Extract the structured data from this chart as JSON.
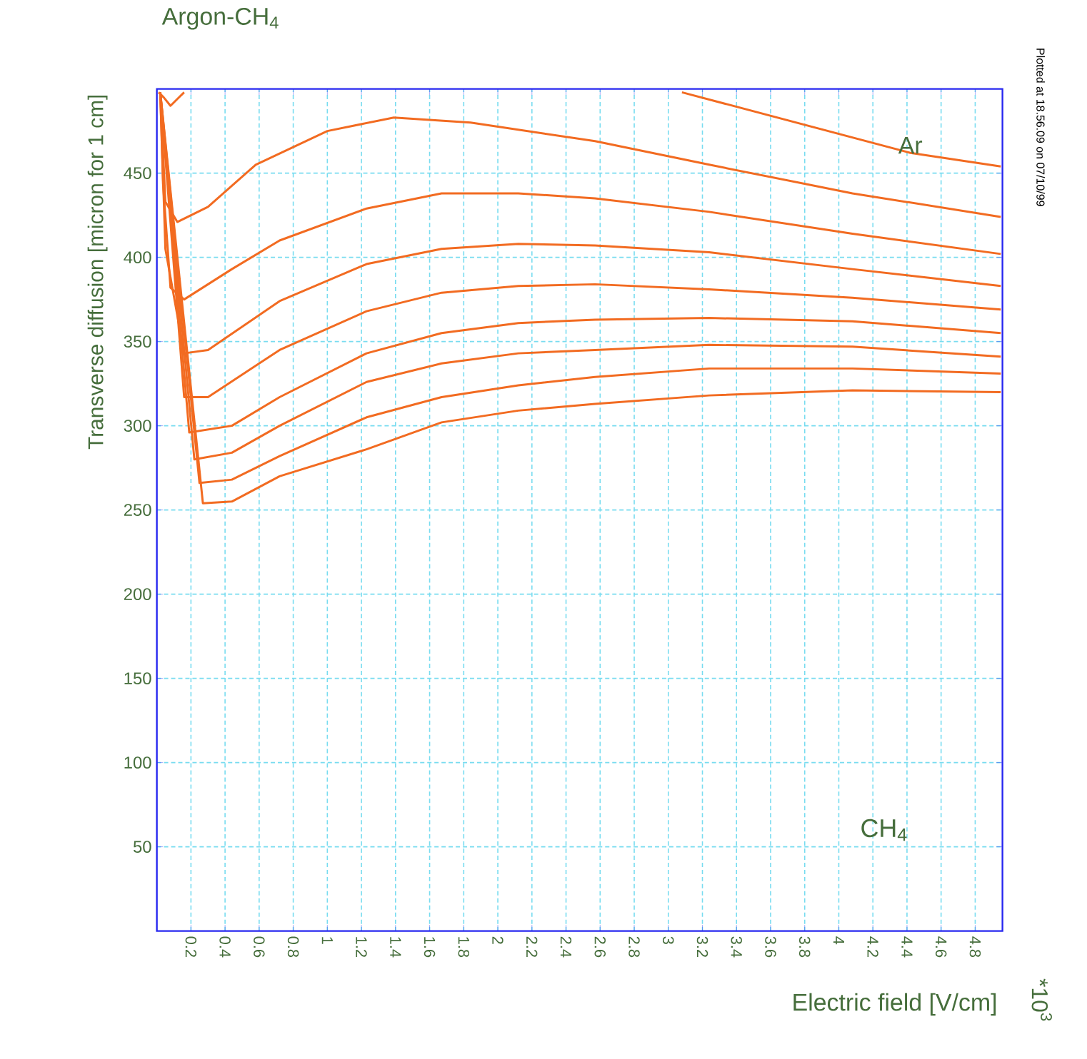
{
  "chart_data": {
    "type": "line",
    "title": "Argon-CH$_{4}$",
    "xlabel": "Electric field [V/cm]",
    "ylabel": "Transverse diffusion [micron for 1 cm]",
    "annotations": [
      {
        "text": "Ar",
        "x": 4.42,
        "y": 462
      },
      "CH$_{4}$",
      "Plotted at 18.56.09 on 07/10/99",
      "*10$^{3}$"
    ],
    "xlim": [
      0,
      4.96
    ],
    "ylim": [
      0,
      500
    ],
    "xticks": [
      0.2,
      0.4,
      0.6,
      0.8,
      1,
      1.2,
      1.4,
      1.6,
      1.8,
      2,
      2.2,
      2.4,
      2.6,
      2.8,
      3,
      3.2,
      3.4,
      3.6,
      3.8,
      4,
      4.2,
      4.4,
      4.6,
      4.8
    ],
    "yticks": [
      50,
      100,
      150,
      200,
      250,
      300,
      350,
      400,
      450
    ],
    "grid": true,
    "series": [
      {
        "color": "#f26b21",
        "x": [
          0.01,
          0.04,
          0.08,
          0.12,
          0.16,
          1.0,
          3.08,
          4.42,
          4.95
        ],
        "values": [
          498,
          495,
          490,
          494,
          498,
          null,
          498,
          462,
          454
        ]
      },
      {
        "color": "#f26b21",
        "x": [
          0.02,
          0.05,
          0.12,
          0.3,
          0.58,
          1.0,
          1.39,
          1.84,
          2.57,
          3.24,
          4.08,
          4.95
        ],
        "values": [
          498,
          433,
          421,
          430,
          455,
          475,
          483,
          480,
          469,
          455,
          438,
          424
        ]
      },
      {
        "color": "#f26b21",
        "x": [
          0.02,
          0.036,
          0.08,
          0.16,
          0.44,
          0.72,
          1.23,
          1.67,
          2.12,
          2.57,
          3.24,
          4.08,
          4.95
        ],
        "values": [
          498,
          444,
          382,
          375,
          393,
          410,
          429,
          438,
          438,
          435,
          427,
          414,
          402
        ]
      },
      {
        "color": "#f26b21",
        "x": [
          0.02,
          0.05,
          0.16,
          0.3,
          0.72,
          1.23,
          1.67,
          2.12,
          2.57,
          3.24,
          4.08,
          4.95
        ],
        "values": [
          498,
          405,
          343,
          345,
          374,
          396,
          405,
          408,
          407,
          403,
          393,
          383
        ]
      },
      {
        "color": "#f26b21",
        "x": [
          0.02,
          0.16,
          0.3,
          0.72,
          1.23,
          1.67,
          2.12,
          2.57,
          3.24,
          4.08,
          4.95
        ],
        "values": [
          498,
          317,
          317,
          345,
          368,
          379,
          383,
          384,
          381,
          376,
          369
        ]
      },
      {
        "color": "#f26b21",
        "x": [
          0.02,
          0.19,
          0.44,
          0.72,
          1.23,
          1.67,
          2.12,
          2.57,
          3.24,
          4.08,
          4.95
        ],
        "values": [
          498,
          296,
          300,
          317,
          343,
          355,
          361,
          363,
          364,
          362,
          355
        ]
      },
      {
        "color": "#f26b21",
        "x": [
          0.02,
          0.22,
          0.44,
          0.72,
          1.23,
          1.67,
          2.12,
          2.57,
          3.24,
          4.08,
          4.95
        ],
        "values": [
          498,
          280,
          284,
          300,
          326,
          337,
          343,
          345,
          348,
          347,
          341
        ]
      },
      {
        "color": "#f26b21",
        "x": [
          0.02,
          0.25,
          0.44,
          0.72,
          1.23,
          1.67,
          2.12,
          2.57,
          3.24,
          4.08,
          4.95
        ],
        "values": [
          498,
          266,
          268,
          282,
          305,
          317,
          324,
          329,
          334,
          334,
          331
        ]
      },
      {
        "color": "#f26b21",
        "x": [
          0.02,
          0.27,
          0.44,
          0.72,
          1.23,
          1.67,
          2.12,
          2.57,
          3.24,
          4.08,
          4.95
        ],
        "values": [
          498,
          254,
          255,
          270,
          286,
          302,
          309,
          313,
          318,
          321,
          320
        ]
      }
    ]
  }
}
